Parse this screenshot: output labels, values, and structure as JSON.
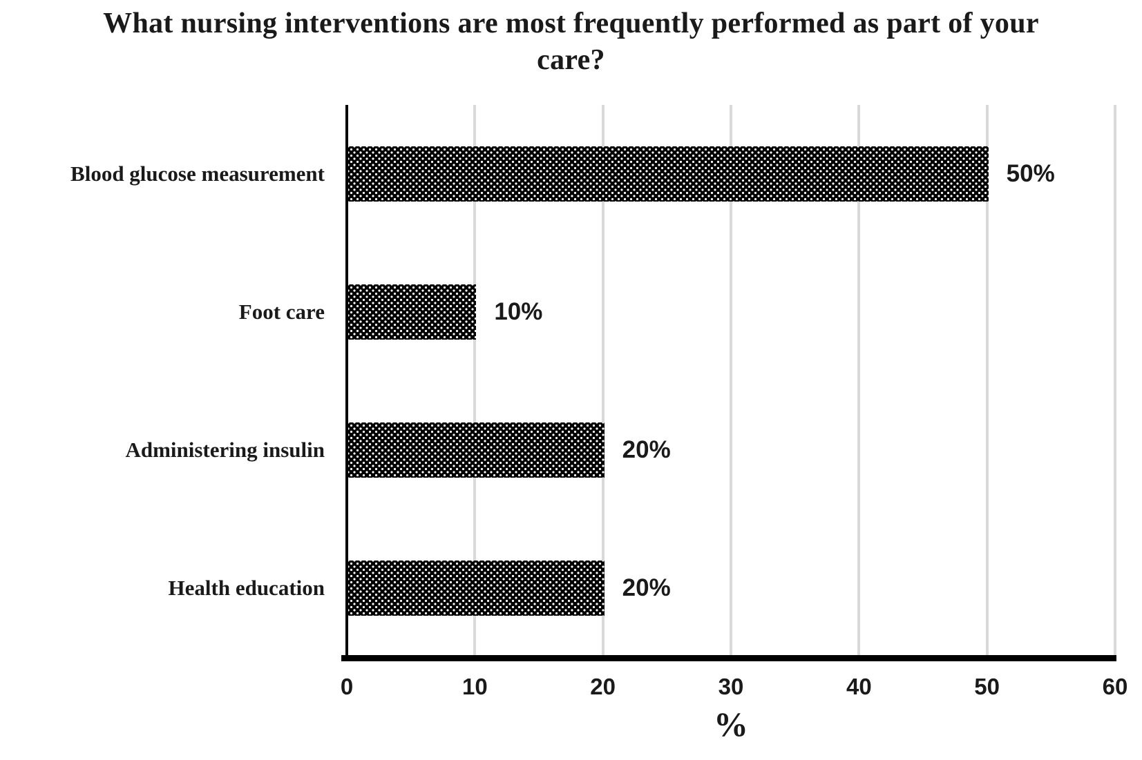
{
  "chart_data": {
    "type": "bar",
    "orientation": "horizontal",
    "title": "What nursing interventions are most frequently performed as part of your care?",
    "categories": [
      "Blood glucose measurement",
      "Foot care",
      "Administering insulin",
      "Health education"
    ],
    "values": [
      50,
      10,
      20,
      20
    ],
    "data_labels": [
      "50%",
      "10%",
      "20%",
      "20%"
    ],
    "xlabel": "%",
    "ylabel": "",
    "xlim": [
      0,
      60
    ],
    "xticks": [
      "0",
      "10",
      "20",
      "30",
      "40",
      "50",
      "60"
    ],
    "grid": "vertical gridlines every 10 units",
    "legend": "none",
    "bar_style": "black fill with white dotted pattern"
  },
  "colors": {
    "background": "#ffffff",
    "bar_fill": "#000000",
    "bar_dots": "#ffffff",
    "gridline": "#d9d9d9",
    "axis": "#000000",
    "text": "#1a1a1a"
  }
}
